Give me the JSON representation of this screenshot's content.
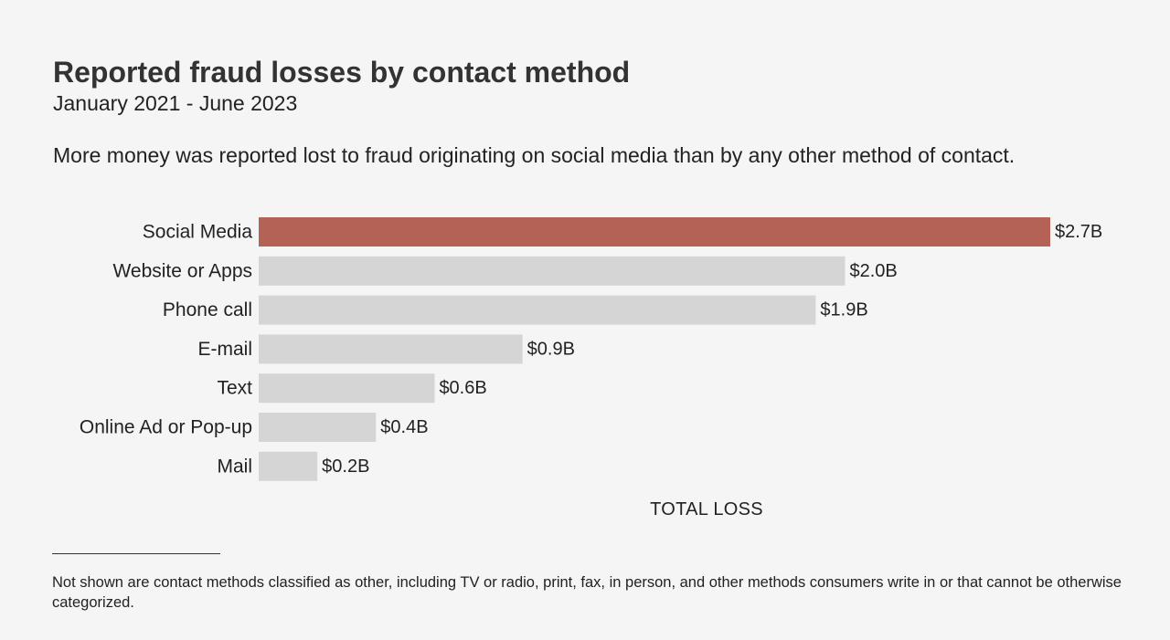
{
  "header": {
    "title": "Reported fraud losses by contact method",
    "subtitle": "January 2021 - June 2023",
    "description": "More money was reported lost to fraud originating on social media than by any other method of contact."
  },
  "footnote": {
    "text": "Not shown are contact methods classified as other, including TV or radio, print, fax, in person, and other methods consumers write in or that cannot be otherwise categorized."
  },
  "colors": {
    "highlight": "#b46255",
    "bar": "#d5d5d5",
    "background": "#f5f5f5",
    "text": "#222222"
  },
  "chart_data": {
    "type": "bar",
    "orientation": "horizontal",
    "title": "Reported fraud losses by contact method",
    "subtitle": "January 2021 - June 2023",
    "xlabel": "TOTAL LOSS",
    "ylabel": "",
    "categories": [
      "Social Media",
      "Website or Apps",
      "Phone call",
      "E-mail",
      "Text",
      "Online Ad or Pop-up",
      "Mail"
    ],
    "values": [
      2.7,
      2.0,
      1.9,
      0.9,
      0.6,
      0.4,
      0.2
    ],
    "value_labels": [
      "$2.7B",
      "$2.0B",
      "$1.9B",
      "$0.9B",
      "$0.6B",
      "$0.4B",
      "$0.2B"
    ],
    "unit": "billion USD",
    "highlight_index": 0,
    "xlim": [
      0,
      2.7
    ],
    "grid": false,
    "legend": "none"
  }
}
